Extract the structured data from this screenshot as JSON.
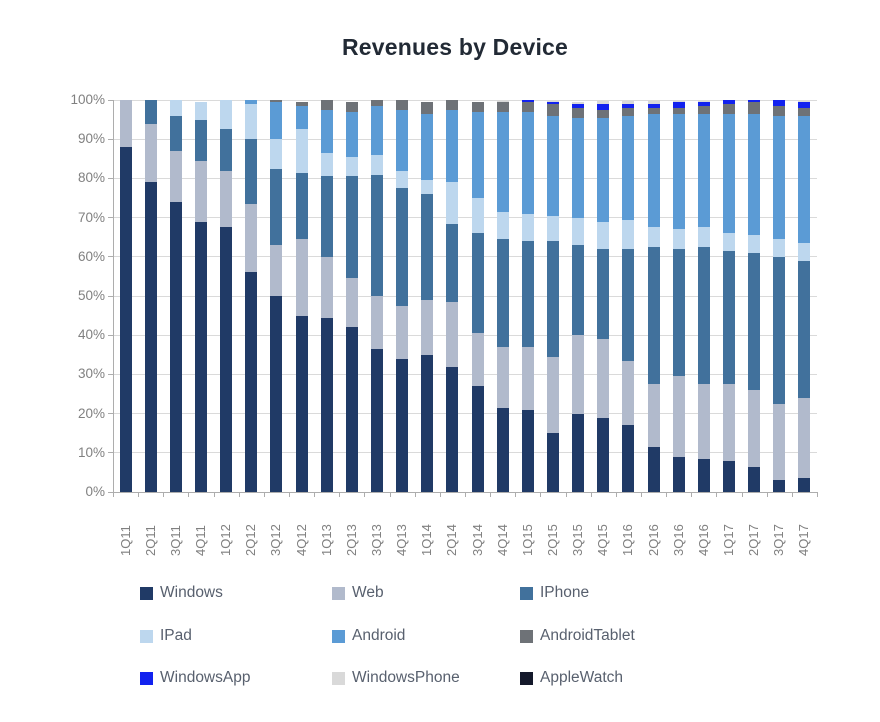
{
  "title": "Revenues by Device",
  "colors": {
    "background": "#ffffff",
    "title_text": "#222a35",
    "grid": "#dadada",
    "axis": "#adadad",
    "tick_text": "#808080",
    "legend_text": "#58606e"
  },
  "chart_data": {
    "type": "bar",
    "stacking": "percent",
    "title": "Revenues by Device",
    "xlabel": "",
    "ylabel": "",
    "grid": true,
    "legend_position": "bottom",
    "y_axis": {
      "min": 0,
      "max": 100,
      "step": 10,
      "tick_labels": [
        "0%",
        "10%",
        "20%",
        "30%",
        "40%",
        "50%",
        "60%",
        "70%",
        "80%",
        "90%",
        "100%"
      ]
    },
    "categories": [
      "1Q11",
      "2Q11",
      "3Q11",
      "4Q11",
      "1Q12",
      "2Q12",
      "3Q12",
      "4Q12",
      "1Q13",
      "2Q13",
      "3Q13",
      "4Q13",
      "1Q14",
      "2Q14",
      "3Q14",
      "4Q14",
      "1Q15",
      "2Q15",
      "3Q15",
      "4Q15",
      "1Q16",
      "2Q16",
      "3Q16",
      "4Q16",
      "1Q17",
      "2Q17",
      "3Q17",
      "4Q17"
    ],
    "series": [
      {
        "name": "Windows",
        "color": "#203a66",
        "values": [
          88,
          79,
          74,
          69,
          67.5,
          56,
          50,
          45,
          44.5,
          42,
          36.5,
          34,
          35,
          32,
          27,
          21.5,
          21,
          15,
          20,
          19,
          17,
          11.5,
          9,
          8.5,
          8,
          6.5,
          3,
          3.5
        ]
      },
      {
        "name": "Web",
        "color": "#b1bacc",
        "values": [
          12,
          15,
          13,
          15.5,
          14.5,
          17.5,
          13,
          19.5,
          15.5,
          12.5,
          13.5,
          13.5,
          14,
          16.5,
          13.5,
          15.5,
          16,
          19.5,
          20,
          20,
          16.5,
          16,
          20.5,
          19,
          19.5,
          19.5,
          19.5,
          20.5
        ]
      },
      {
        "name": "IPhone",
        "color": "#41719c",
        "values": [
          0,
          6,
          9,
          10.5,
          10.5,
          16.5,
          19.5,
          17,
          20.5,
          26,
          31,
          30,
          27,
          20,
          25.5,
          27.5,
          27,
          29.5,
          23,
          23,
          28.5,
          35,
          32.5,
          35,
          34,
          35,
          37.5,
          35
        ]
      },
      {
        "name": "IPad",
        "color": "#bdd7ee",
        "values": [
          0,
          0,
          4,
          4.5,
          7.5,
          9,
          7.5,
          11,
          6,
          5,
          5,
          4.5,
          3.5,
          10.5,
          9,
          7,
          7,
          6.5,
          7,
          7,
          7.5,
          5,
          5,
          5,
          4.5,
          4.5,
          4.5,
          4.5
        ]
      },
      {
        "name": "Android",
        "color": "#5b9bd5",
        "values": [
          0,
          0,
          0,
          0,
          0,
          1,
          9.5,
          6,
          11,
          11.5,
          12.5,
          15.5,
          17,
          18.5,
          22,
          25.5,
          26,
          25.5,
          25.5,
          26.5,
          26.5,
          29,
          29.5,
          29,
          30.5,
          31,
          31.5,
          32.5
        ]
      },
      {
        "name": "AndroidTablet",
        "color": "#6e7277",
        "values": [
          0,
          0,
          0,
          0,
          0,
          0,
          0.5,
          1,
          2.5,
          2.5,
          1.5,
          2.5,
          3,
          2.5,
          2.5,
          2.5,
          2.5,
          3,
          2.5,
          2,
          2,
          1.5,
          1.5,
          2,
          2.5,
          3,
          2.5,
          2
        ]
      },
      {
        "name": "WindowsApp",
        "color": "#1222ef",
        "values": [
          0,
          0,
          0,
          0,
          0,
          0,
          0,
          0,
          0,
          0,
          0,
          0,
          0,
          0,
          0,
          0,
          0.5,
          0.5,
          1,
          1.5,
          1,
          1,
          1.5,
          1,
          1,
          0.5,
          1.5,
          1.5
        ]
      },
      {
        "name": "WindowsPhone",
        "color": "#d9d9d9",
        "values": [
          0,
          0,
          0,
          0,
          0,
          0,
          0,
          0,
          0,
          0,
          0,
          0,
          0,
          0,
          0,
          0.5,
          0,
          0.5,
          0.5,
          1,
          1,
          1,
          0.5,
          0.5,
          0,
          0,
          0,
          0.5
        ]
      },
      {
        "name": "AppleWatch",
        "color": "#14192b",
        "values": [
          0,
          0,
          0,
          0,
          0,
          0,
          0,
          0,
          0,
          0,
          0,
          0,
          0,
          0,
          0,
          0,
          0,
          0,
          0,
          0,
          0,
          0,
          0,
          0,
          0,
          0,
          0,
          0
        ]
      }
    ]
  }
}
